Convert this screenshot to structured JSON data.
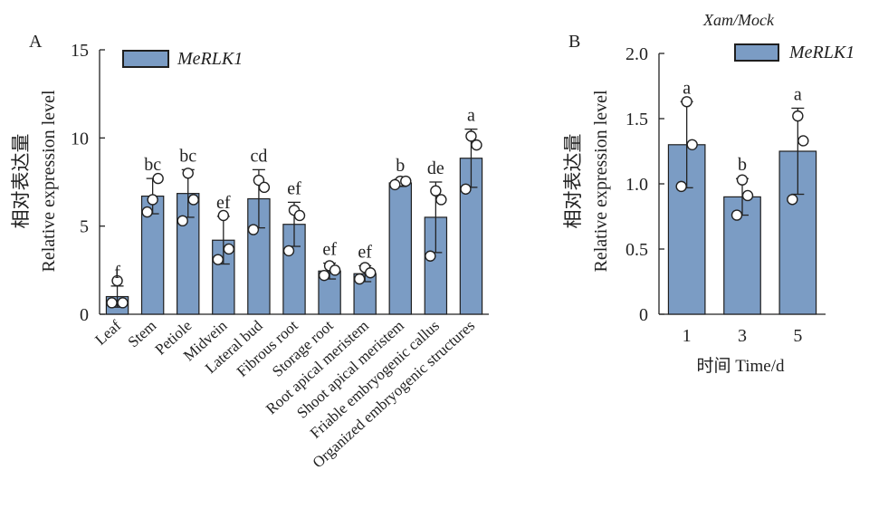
{
  "chart_data": [
    {
      "type": "bar",
      "panel_label": "A",
      "title": "",
      "ylabel_cn": "相对表达量",
      "ylabel": "Relative expression level",
      "xlabel": "",
      "ylim": [
        0,
        15
      ],
      "yticks": [
        0,
        5,
        10,
        15
      ],
      "legend": {
        "label": "MeRLK1",
        "placement": "top-left"
      },
      "colors": {
        "bar": "#7b9cc4",
        "edge": "#1f1f1f"
      },
      "categories": [
        "Leaf",
        "Stem",
        "Petiole",
        "Midvein",
        "Lateral bud",
        "Fibrous root",
        "Storage root",
        "Root apical meristem",
        "Shoot apical meristem",
        "Friable embryogenic callus",
        "Organized embryogenic structures"
      ],
      "values": [
        1.0,
        6.7,
        6.85,
        4.2,
        6.55,
        5.1,
        2.45,
        2.3,
        7.45,
        5.5,
        8.85
      ],
      "errors": [
        0.6,
        1.0,
        1.35,
        1.35,
        1.65,
        1.25,
        0.45,
        0.45,
        0.2,
        2.0,
        1.65
      ],
      "points": [
        [
          1.9,
          0.65,
          0.65
        ],
        [
          6.5,
          7.7,
          5.8
        ],
        [
          8.0,
          6.5,
          5.3
        ],
        [
          5.6,
          3.7,
          3.1
        ],
        [
          7.6,
          7.2,
          4.8
        ],
        [
          5.9,
          5.6,
          3.6
        ],
        [
          2.75,
          2.5,
          2.2
        ],
        [
          2.65,
          2.35,
          2.0
        ],
        [
          7.55,
          7.55,
          7.35
        ],
        [
          7.0,
          6.5,
          3.3
        ],
        [
          10.1,
          9.6,
          7.1
        ]
      ],
      "significance": [
        "f",
        "bc",
        "bc",
        "ef",
        "cd",
        "ef",
        "ef",
        "ef",
        "b",
        "de",
        "a"
      ]
    },
    {
      "type": "bar",
      "panel_label": "B",
      "title": "Xam/Mock",
      "ylabel_cn": "相对表达量",
      "ylabel": "Relative expression level",
      "xlabel": "时间 Time/d",
      "ylim": [
        0,
        2.0
      ],
      "yticks": [
        "0",
        "0.5",
        "1.0",
        "1.5",
        "2.0"
      ],
      "legend": {
        "label": "MeRLK1",
        "placement": "top-right"
      },
      "colors": {
        "bar": "#7b9cc4",
        "edge": "#1f1f1f"
      },
      "categories": [
        "1",
        "3",
        "5"
      ],
      "values": [
        1.3,
        0.9,
        1.25
      ],
      "errors": [
        0.33,
        0.14,
        0.33
      ],
      "points": [
        [
          1.63,
          1.3,
          0.98
        ],
        [
          1.03,
          0.91,
          0.76
        ],
        [
          1.52,
          1.33,
          0.88
        ]
      ],
      "significance": [
        "a",
        "b",
        "a"
      ]
    }
  ]
}
